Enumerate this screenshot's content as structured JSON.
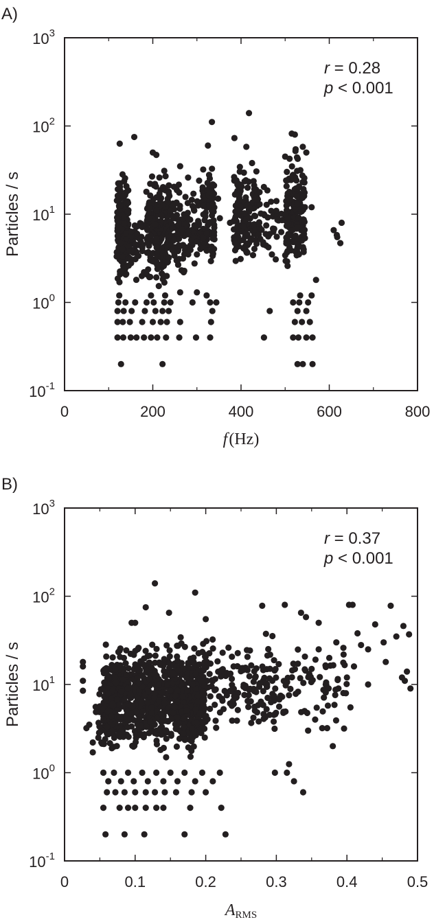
{
  "chart_data": [
    {
      "type": "scatter",
      "panel_label": "A)",
      "xlabel_var": "f",
      "xlabel_unit": "(Hz)",
      "xlabel_sub": "",
      "ylabel": "Particles / s",
      "xlim": [
        0,
        800
      ],
      "ylim": [
        0.1,
        1000
      ],
      "yscale": "log",
      "xticks": [
        "0",
        "200",
        "400",
        "600",
        "800"
      ],
      "yticks": [
        {
          "base": "10",
          "exp": "-1"
        },
        {
          "base": "10",
          "exp": "0"
        },
        {
          "base": "10",
          "exp": "1"
        },
        {
          "base": "10",
          "exp": "2"
        },
        {
          "base": "10",
          "exp": "3"
        }
      ],
      "annotation": {
        "r_sym": "r",
        "r_val": " = 0.28",
        "p_sym": "p",
        "p_val": " < 0.001"
      },
      "grid": false,
      "marker_color": "#231f20",
      "points": [
        [
          128,
          0.2
        ],
        [
          222,
          0.2
        ],
        [
          528,
          0.2
        ],
        [
          540,
          0.2
        ],
        [
          562,
          0.2
        ],
        [
          120,
          0.4
        ],
        [
          133,
          0.4
        ],
        [
          150,
          0.4
        ],
        [
          163,
          0.4
        ],
        [
          180,
          0.4
        ],
        [
          196,
          0.4
        ],
        [
          210,
          0.4
        ],
        [
          230,
          0.4
        ],
        [
          260,
          0.4
        ],
        [
          298,
          0.4
        ],
        [
          330,
          0.4
        ],
        [
          452,
          0.4
        ],
        [
          518,
          0.4
        ],
        [
          530,
          0.4
        ],
        [
          548,
          0.4
        ],
        [
          562,
          0.4
        ],
        [
          120,
          0.6
        ],
        [
          132,
          0.6
        ],
        [
          148,
          0.6
        ],
        [
          176,
          0.6
        ],
        [
          200,
          0.6
        ],
        [
          218,
          0.6
        ],
        [
          232,
          0.6
        ],
        [
          262,
          0.6
        ],
        [
          332,
          0.6
        ],
        [
          522,
          0.6
        ],
        [
          538,
          0.6
        ],
        [
          556,
          0.6
        ],
        [
          120,
          0.8
        ],
        [
          134,
          0.8
        ],
        [
          152,
          0.8
        ],
        [
          182,
          0.8
        ],
        [
          206,
          0.8
        ],
        [
          222,
          0.8
        ],
        [
          236,
          0.8
        ],
        [
          335,
          0.8
        ],
        [
          465,
          0.8
        ],
        [
          528,
          0.8
        ],
        [
          548,
          0.8
        ],
        [
          122,
          1.0
        ],
        [
          138,
          1.0
        ],
        [
          160,
          1.0
        ],
        [
          186,
          1.0
        ],
        [
          202,
          1.0
        ],
        [
          226,
          1.0
        ],
        [
          240,
          1.0
        ],
        [
          290,
          1.0
        ],
        [
          330,
          1.0
        ],
        [
          344,
          1.0
        ],
        [
          518,
          1.0
        ],
        [
          532,
          1.0
        ],
        [
          552,
          1.0
        ],
        [
          124,
          1.2
        ],
        [
          196,
          1.2
        ],
        [
          228,
          1.2
        ],
        [
          262,
          1.3
        ],
        [
          300,
          1.3
        ],
        [
          322,
          1.2
        ],
        [
          534,
          1.2
        ],
        [
          560,
          1.2
        ],
        [
          158,
          75
        ],
        [
          125,
          63
        ],
        [
          200,
          50
        ],
        [
          208,
          47
        ],
        [
          215,
          26
        ],
        [
          226,
          31
        ],
        [
          236,
          18
        ],
        [
          262,
          35
        ],
        [
          280,
          26
        ],
        [
          325,
          60
        ],
        [
          334,
          111
        ],
        [
          385,
          73
        ],
        [
          412,
          58
        ],
        [
          418,
          140
        ],
        [
          425,
          38
        ],
        [
          500,
          45
        ],
        [
          515,
          82
        ],
        [
          522,
          80
        ],
        [
          540,
          58
        ],
        [
          548,
          50
        ],
        [
          610,
          6.6
        ],
        [
          618,
          5.5
        ],
        [
          625,
          4.7
        ],
        [
          628,
          8.0
        ],
        [
          617,
          5.8
        ],
        [
          352,
          9.0
        ],
        [
          375,
          8.0
        ],
        [
          470,
          3.5
        ],
        [
          485,
          8.5
        ],
        [
          452,
          10
        ],
        [
          390,
          4.2
        ],
        [
          570,
          1.8
        ],
        [
          560,
          12
        ],
        [
          300,
          3.5
        ],
        [
          270,
          2.2
        ],
        [
          180,
          2.2
        ],
        [
          305,
          24
        ],
        [
          348,
          15
        ]
      ],
      "clusters": [
        {
          "x_range": [
            118,
            145
          ],
          "y_range": [
            1.2,
            40
          ],
          "n": 170
        },
        {
          "x_range": [
            145,
            178
          ],
          "y_range": [
            1.5,
            15
          ],
          "n": 45
        },
        {
          "x_range": [
            185,
            238
          ],
          "y_range": [
            1.2,
            40
          ],
          "n": 210
        },
        {
          "x_range": [
            238,
            275
          ],
          "y_range": [
            1.5,
            30
          ],
          "n": 80
        },
        {
          "x_range": [
            275,
            312
          ],
          "y_range": [
            2.0,
            20
          ],
          "n": 55
        },
        {
          "x_range": [
            312,
            340
          ],
          "y_range": [
            1.5,
            50
          ],
          "n": 85
        },
        {
          "x_range": [
            383,
            438
          ],
          "y_range": [
            1.5,
            55
          ],
          "n": 150
        },
        {
          "x_range": [
            438,
            495
          ],
          "y_range": [
            2.0,
            30
          ],
          "n": 40
        },
        {
          "x_range": [
            500,
            545
          ],
          "y_range": [
            1.5,
            70
          ],
          "n": 170
        }
      ]
    },
    {
      "type": "scatter",
      "panel_label": "B)",
      "xlabel_var": "A",
      "xlabel_unit": "",
      "xlabel_sub": "RMS",
      "ylabel": "Particles / s",
      "xlim": [
        0,
        0.5
      ],
      "ylim": [
        0.1,
        1000
      ],
      "yscale": "log",
      "xticks": [
        "0",
        "0.1",
        "0.2",
        "0.3",
        "0.4",
        "0.5"
      ],
      "yticks": [
        {
          "base": "10",
          "exp": "-1"
        },
        {
          "base": "10",
          "exp": "0"
        },
        {
          "base": "10",
          "exp": "1"
        },
        {
          "base": "10",
          "exp": "2"
        },
        {
          "base": "10",
          "exp": "3"
        }
      ],
      "annotation": {
        "r_sym": "r",
        "r_val": " = 0.37",
        "p_sym": "p",
        "p_val": " < 0.001"
      },
      "grid": false,
      "marker_color": "#231f20",
      "points": [
        [
          0.058,
          0.2
        ],
        [
          0.085,
          0.2
        ],
        [
          0.113,
          0.2
        ],
        [
          0.17,
          0.2
        ],
        [
          0.228,
          0.2
        ],
        [
          0.055,
          0.4
        ],
        [
          0.078,
          0.4
        ],
        [
          0.09,
          0.4
        ],
        [
          0.1,
          0.4
        ],
        [
          0.115,
          0.4
        ],
        [
          0.13,
          0.4
        ],
        [
          0.14,
          0.4
        ],
        [
          0.178,
          0.4
        ],
        [
          0.222,
          0.4
        ],
        [
          0.06,
          0.6
        ],
        [
          0.072,
          0.6
        ],
        [
          0.085,
          0.6
        ],
        [
          0.1,
          0.6
        ],
        [
          0.115,
          0.6
        ],
        [
          0.128,
          0.6
        ],
        [
          0.142,
          0.6
        ],
        [
          0.158,
          0.6
        ],
        [
          0.18,
          0.6
        ],
        [
          0.2,
          0.6
        ],
        [
          0.338,
          0.6
        ],
        [
          0.062,
          0.8
        ],
        [
          0.08,
          0.8
        ],
        [
          0.098,
          0.8
        ],
        [
          0.118,
          0.8
        ],
        [
          0.14,
          0.8
        ],
        [
          0.16,
          0.8
        ],
        [
          0.185,
          0.8
        ],
        [
          0.21,
          0.8
        ],
        [
          0.325,
          0.8
        ],
        [
          0.055,
          1.0
        ],
        [
          0.07,
          1.0
        ],
        [
          0.09,
          1.0
        ],
        [
          0.11,
          1.0
        ],
        [
          0.13,
          1.0
        ],
        [
          0.15,
          1.0
        ],
        [
          0.17,
          1.0
        ],
        [
          0.195,
          1.0
        ],
        [
          0.22,
          1.0
        ],
        [
          0.298,
          1.0
        ],
        [
          0.315,
          1.0
        ],
        [
          0.318,
          1.25
        ],
        [
          0.026,
          8.5
        ],
        [
          0.026,
          11
        ],
        [
          0.026,
          16
        ],
        [
          0.026,
          18
        ],
        [
          0.031,
          3.2
        ],
        [
          0.035,
          3.5
        ],
        [
          0.04,
          2.2
        ],
        [
          0.04,
          1.7
        ],
        [
          0.128,
          140
        ],
        [
          0.185,
          110
        ],
        [
          0.115,
          75
        ],
        [
          0.095,
          50
        ],
        [
          0.1,
          50
        ],
        [
          0.148,
          65
        ],
        [
          0.2,
          55
        ],
        [
          0.28,
          78
        ],
        [
          0.312,
          80
        ],
        [
          0.335,
          65
        ],
        [
          0.342,
          58
        ],
        [
          0.36,
          50
        ],
        [
          0.403,
          80
        ],
        [
          0.408,
          80
        ],
        [
          0.462,
          78
        ],
        [
          0.48,
          46
        ],
        [
          0.488,
          37
        ],
        [
          0.485,
          14
        ],
        [
          0.49,
          9
        ],
        [
          0.478,
          12
        ],
        [
          0.482,
          11
        ],
        [
          0.452,
          30
        ],
        [
          0.44,
          48
        ],
        [
          0.43,
          10
        ],
        [
          0.405,
          5.5
        ],
        [
          0.388,
          9
        ],
        [
          0.37,
          10
        ],
        [
          0.38,
          2
        ],
        [
          0.365,
          3.2
        ],
        [
          0.372,
          3.2
        ],
        [
          0.355,
          4
        ],
        [
          0.345,
          3
        ],
        [
          0.34,
          5
        ],
        [
          0.395,
          26
        ],
        [
          0.42,
          28
        ],
        [
          0.41,
          16
        ],
        [
          0.375,
          20
        ],
        [
          0.385,
          30
        ],
        [
          0.4,
          12
        ],
        [
          0.35,
          15
        ],
        [
          0.36,
          25
        ],
        [
          0.43,
          25
        ],
        [
          0.47,
          35
        ],
        [
          0.455,
          18
        ],
        [
          0.415,
          38
        ],
        [
          0.395,
          8
        ]
      ],
      "clusters": [
        {
          "x_range": [
            0.055,
            0.2
          ],
          "y_range": [
            1.2,
            40
          ],
          "n": 900
        },
        {
          "x_range": [
            0.042,
            0.07
          ],
          "y_range": [
            1.5,
            10
          ],
          "n": 45
        },
        {
          "x_range": [
            0.15,
            0.3
          ],
          "y_range": [
            2.0,
            50
          ],
          "n": 200
        },
        {
          "x_range": [
            0.25,
            0.4
          ],
          "y_range": [
            2.0,
            45
          ],
          "n": 90
        }
      ]
    }
  ]
}
